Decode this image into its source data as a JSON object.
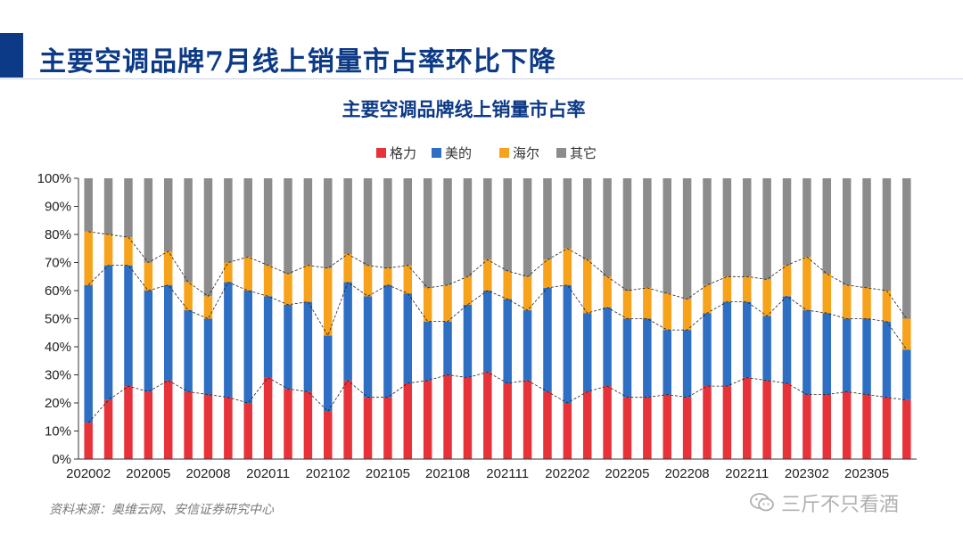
{
  "page": {
    "title": "主要空调品牌7月线上销量市占率环比下降",
    "source": "资料来源：奥维云网、安信证券研究中心",
    "watermark": "三斤不只看酒"
  },
  "colors": {
    "gree": "#e8323a",
    "midea": "#2e6fc4",
    "haier": "#f7a21b",
    "other": "#8c8c8c",
    "accent": "#0d3a86"
  },
  "chart_data": {
    "type": "bar",
    "stacked": true,
    "title": "主要空调品牌线上销量市占率",
    "xlabel": "",
    "ylabel": "",
    "ylim": [
      0,
      100
    ],
    "yticks": [
      "0%",
      "10%",
      "20%",
      "30%",
      "40%",
      "50%",
      "60%",
      "70%",
      "80%",
      "90%",
      "100%"
    ],
    "legend_position": "top",
    "categories": [
      "202002",
      "202003",
      "202004",
      "202005",
      "202006",
      "202007",
      "202008",
      "202009",
      "202010",
      "202011",
      "202012",
      "202101",
      "202102",
      "202103",
      "202104",
      "202105",
      "202106",
      "202107",
      "202108",
      "202109",
      "202110",
      "202111",
      "202112",
      "202201",
      "202202",
      "202203",
      "202204",
      "202205",
      "202206",
      "202207",
      "202208",
      "202209",
      "202210",
      "202211",
      "202212",
      "202301",
      "202302",
      "202303",
      "202304",
      "202305",
      "202306",
      "202307"
    ],
    "xtick_labels": [
      "202002",
      "202005",
      "202008",
      "202011",
      "202102",
      "202105",
      "202108",
      "202111",
      "202202",
      "202205",
      "202208",
      "202211",
      "202302",
      "202305"
    ],
    "series": [
      {
        "name": "格力",
        "values": [
          13,
          21,
          26,
          24,
          28,
          24,
          23,
          22,
          20,
          29,
          25,
          24,
          17,
          28,
          22,
          22,
          27,
          28,
          30,
          29,
          31,
          27,
          28,
          24,
          20,
          24,
          26,
          22,
          22,
          23,
          22,
          26,
          26,
          29,
          28,
          27,
          23,
          23,
          24,
          23,
          22,
          21
        ]
      },
      {
        "name": "美的",
        "values": [
          49,
          48,
          43,
          36,
          34,
          29,
          27,
          41,
          40,
          29,
          30,
          32,
          27,
          35,
          36,
          40,
          32,
          21,
          19,
          26,
          29,
          30,
          25,
          37,
          42,
          28,
          28,
          28,
          28,
          23,
          24,
          26,
          30,
          27,
          23,
          31,
          30,
          29,
          26,
          27,
          27,
          18
        ]
      },
      {
        "name": "海尔",
        "values": [
          19,
          11,
          10,
          10,
          12,
          10,
          8,
          7,
          12,
          11,
          11,
          13,
          24,
          10,
          11,
          6,
          10,
          12,
          13,
          10,
          11,
          10,
          12,
          10,
          13,
          19,
          11,
          10,
          11,
          13,
          11,
          10,
          9,
          9,
          13,
          11,
          19,
          14,
          12,
          11,
          11,
          11
        ]
      },
      {
        "name": "其它",
        "values": [
          19,
          20,
          21,
          30,
          26,
          37,
          42,
          30,
          28,
          31,
          34,
          31,
          32,
          27,
          31,
          32,
          31,
          39,
          38,
          35,
          29,
          33,
          35,
          29,
          25,
          29,
          35,
          40,
          39,
          41,
          43,
          38,
          35,
          35,
          36,
          31,
          28,
          34,
          38,
          39,
          40,
          50
        ]
      }
    ]
  }
}
